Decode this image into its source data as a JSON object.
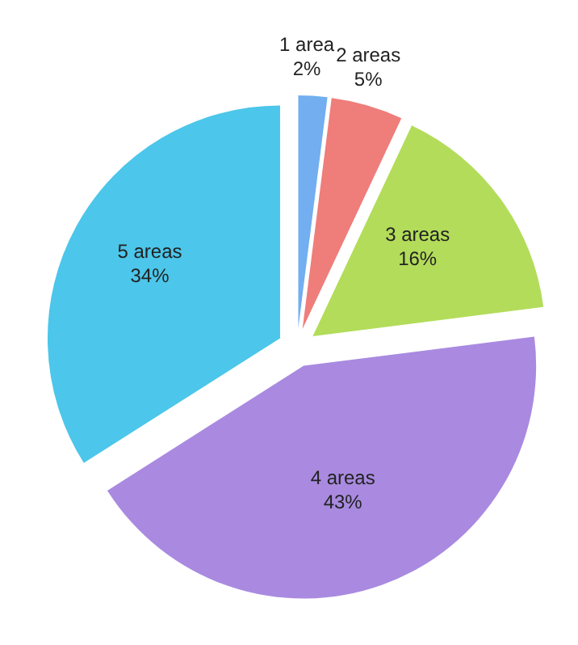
{
  "chart_data": {
    "type": "pie",
    "categories": [
      "1 area",
      "2 areas",
      "3 areas",
      "4 areas",
      "5 areas"
    ],
    "values": [
      2,
      5,
      16,
      43,
      34
    ],
    "value_labels": [
      "2%",
      "5%",
      "16%",
      "43%",
      "34%"
    ],
    "colors": [
      "#72aef0",
      "#ef7d7a",
      "#b3dc5a",
      "#a98ae0",
      "#4cc6ea"
    ],
    "legend": false
  }
}
